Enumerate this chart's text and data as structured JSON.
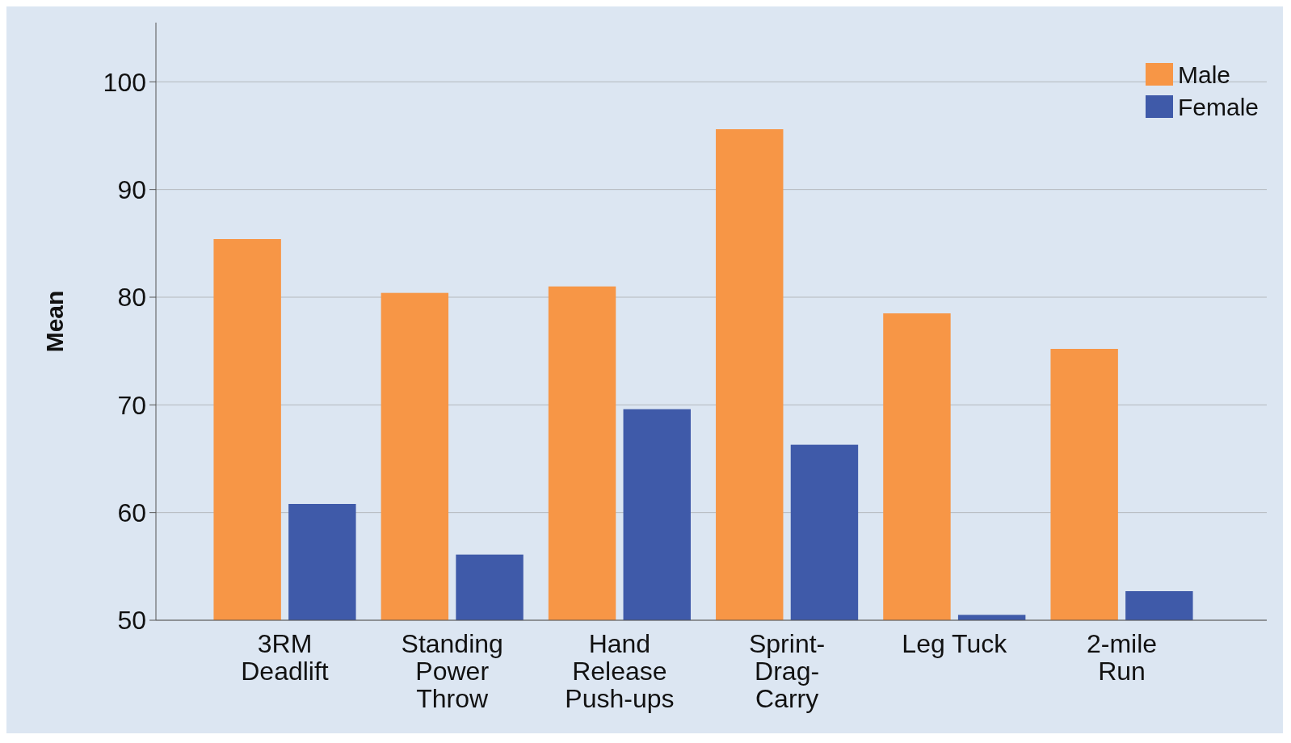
{
  "chart_data": {
    "type": "bar",
    "ylabel": "Mean",
    "categories": [
      "3RM Deadlift",
      "Standing Power Throw",
      "Hand Release Push-ups",
      "Sprint-Drag-Carry",
      "Leg Tuck",
      "2-mile Run"
    ],
    "series": [
      {
        "name": "Male",
        "color": "#f79646",
        "values": [
          85.4,
          80.4,
          81.0,
          95.6,
          78.5,
          75.2
        ]
      },
      {
        "name": "Female",
        "color": "#3f5aa9",
        "values": [
          60.8,
          56.1,
          69.6,
          66.3,
          50.5,
          52.7
        ]
      }
    ],
    "ylim": [
      50,
      105.5
    ],
    "yticks": [
      50,
      60,
      70,
      80,
      90,
      100
    ],
    "grid": "y",
    "legend": "top right"
  }
}
